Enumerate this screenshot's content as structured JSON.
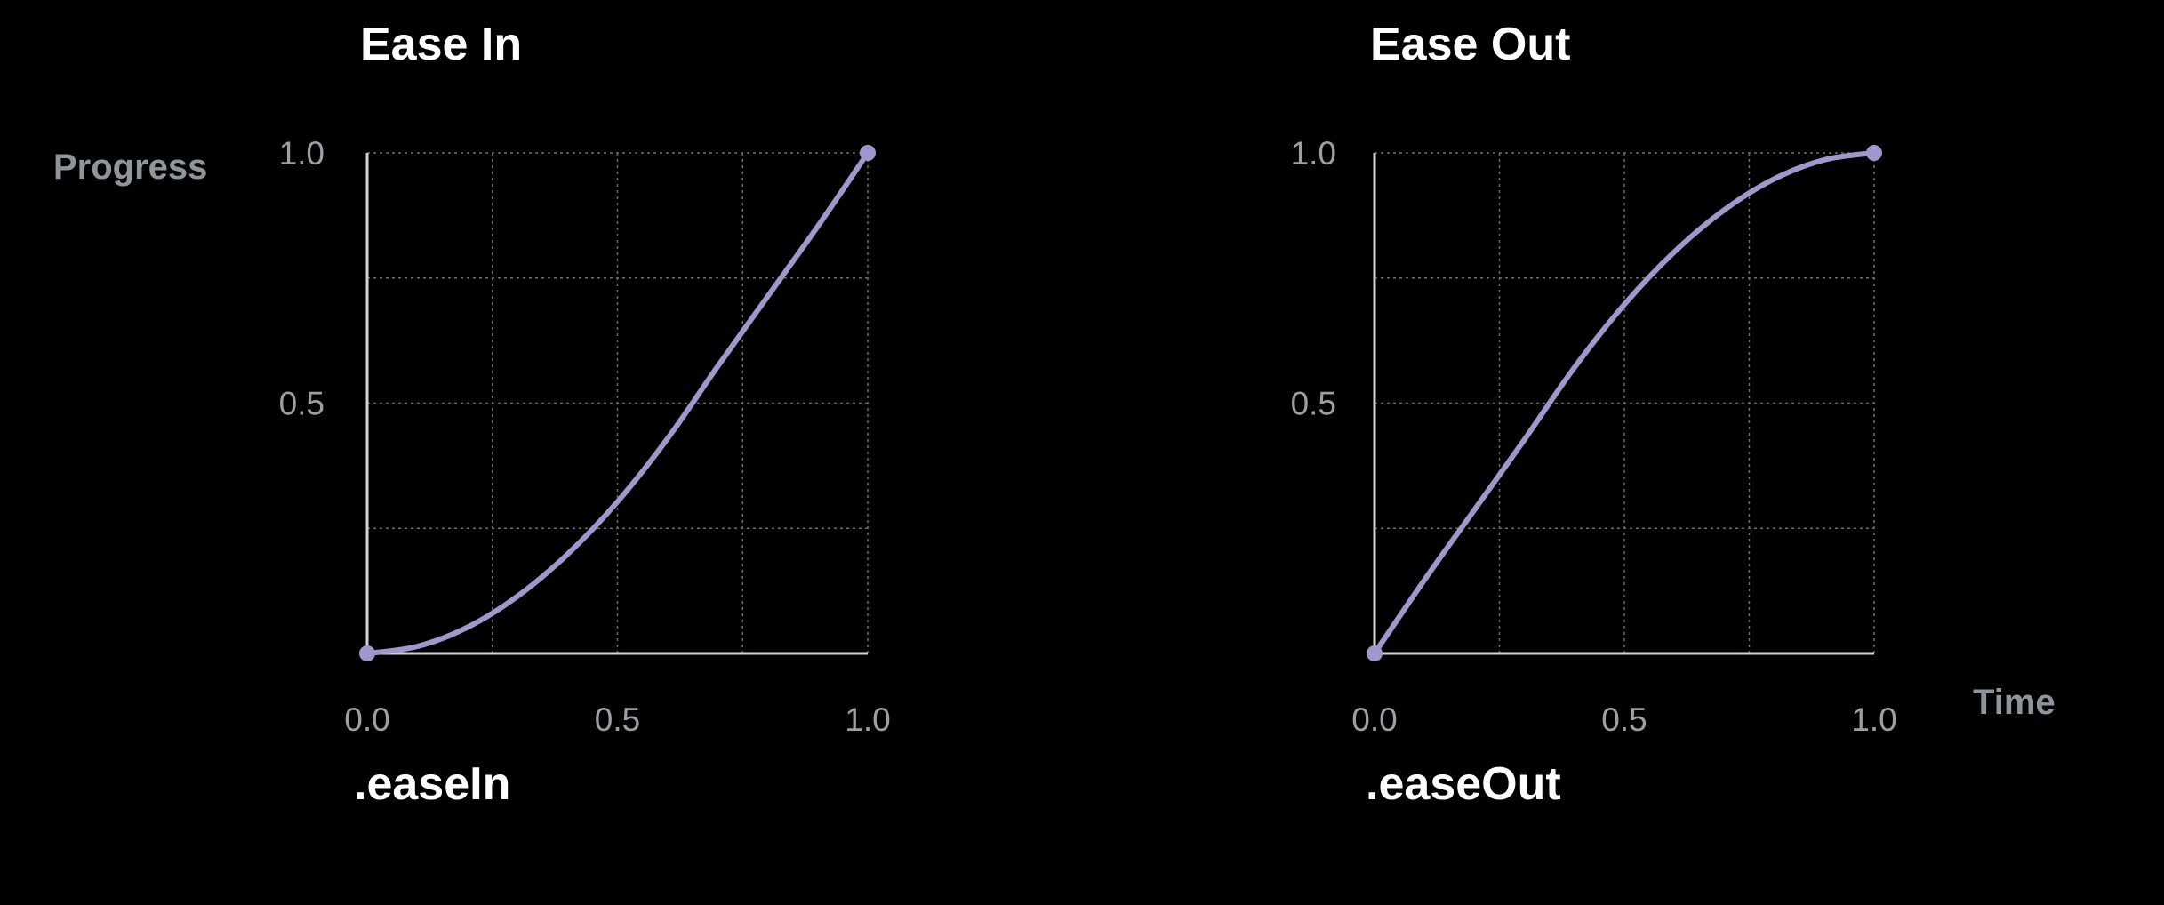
{
  "labels": {
    "progress": "Progress",
    "time": "Time"
  },
  "colors": {
    "background": "#000000",
    "curve": "#9f98cc",
    "axis": "#d0d3d6",
    "grid": "#6a6e73",
    "tick_text": "#9aa0a6",
    "axis_name": "#8e959c",
    "title": "#ffffff"
  },
  "chart_data": [
    {
      "type": "line",
      "title": "Ease In",
      "caption": ".easeIn",
      "xlabel": "",
      "ylabel": "Progress",
      "xlim": [
        0,
        1
      ],
      "ylim": [
        0,
        1
      ],
      "x_ticks": [
        "0.0",
        "0.5",
        "1.0"
      ],
      "y_ticks": [
        "1.0",
        "0.5"
      ],
      "grid": true,
      "grid_step": 0.25,
      "series": [
        {
          "x": [
            0,
            0.1,
            0.2,
            0.3,
            0.4,
            0.5,
            0.6,
            0.7,
            0.8,
            0.9,
            1.0
          ],
          "y": [
            0,
            0.014,
            0.052,
            0.114,
            0.198,
            0.303,
            0.429,
            0.573,
            0.713,
            0.853,
            1.0
          ]
        }
      ],
      "endpoints": [
        [
          0,
          0
        ],
        [
          1,
          1
        ]
      ]
    },
    {
      "type": "line",
      "title": "Ease Out",
      "caption": ".easeOut",
      "xlabel": "Time",
      "ylabel": "",
      "xlim": [
        0,
        1
      ],
      "ylim": [
        0,
        1
      ],
      "x_ticks": [
        "0.0",
        "0.5",
        "1.0"
      ],
      "y_ticks": [
        "1.0",
        "0.5"
      ],
      "grid": true,
      "grid_step": 0.25,
      "series": [
        {
          "x": [
            0,
            0.1,
            0.2,
            0.3,
            0.4,
            0.5,
            0.6,
            0.7,
            0.8,
            0.9,
            1.0
          ],
          "y": [
            0,
            0.147,
            0.287,
            0.427,
            0.571,
            0.697,
            0.802,
            0.886,
            0.948,
            0.986,
            1.0
          ]
        }
      ],
      "endpoints": [
        [
          0,
          0
        ],
        [
          1,
          1
        ]
      ]
    }
  ]
}
